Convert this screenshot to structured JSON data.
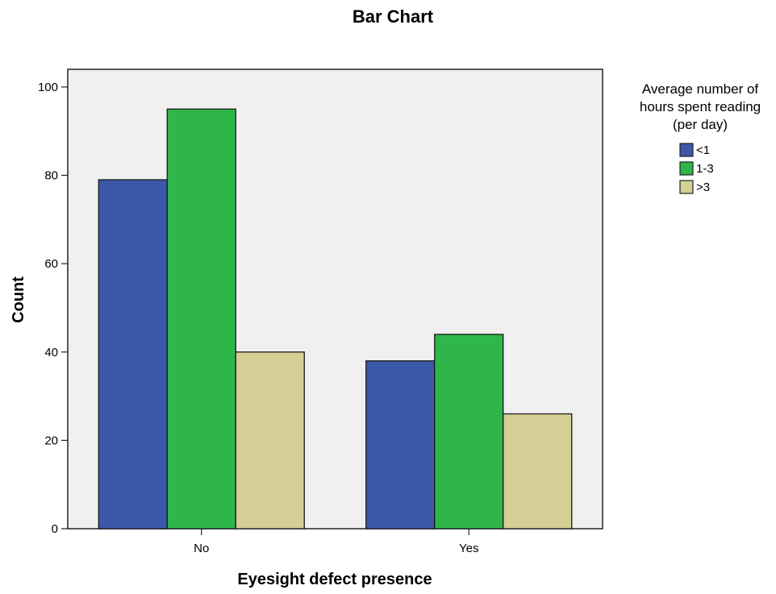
{
  "chart_data": {
    "type": "bar",
    "title": "Bar Chart",
    "xlabel": "Eyesight defect presence",
    "ylabel": "Count",
    "categories": [
      "No",
      "Yes"
    ],
    "ylim": [
      0,
      104
    ],
    "yticks": [
      0,
      20,
      40,
      60,
      80,
      100
    ],
    "legend_title": "Average number of hours spent reading (per day)",
    "legend_position": "top-right",
    "grid": false,
    "series": [
      {
        "name": "<1",
        "values": [
          79,
          38
        ],
        "color": "#3c58a9"
      },
      {
        "name": "1-3",
        "values": [
          95,
          44
        ],
        "color": "#2fb64a"
      },
      {
        "name": ">3",
        "values": [
          40,
          26
        ],
        "color": "#d5cf95"
      }
    ],
    "plot_background": "#f0f0f0",
    "bar_outline": "#1a1a1a"
  }
}
